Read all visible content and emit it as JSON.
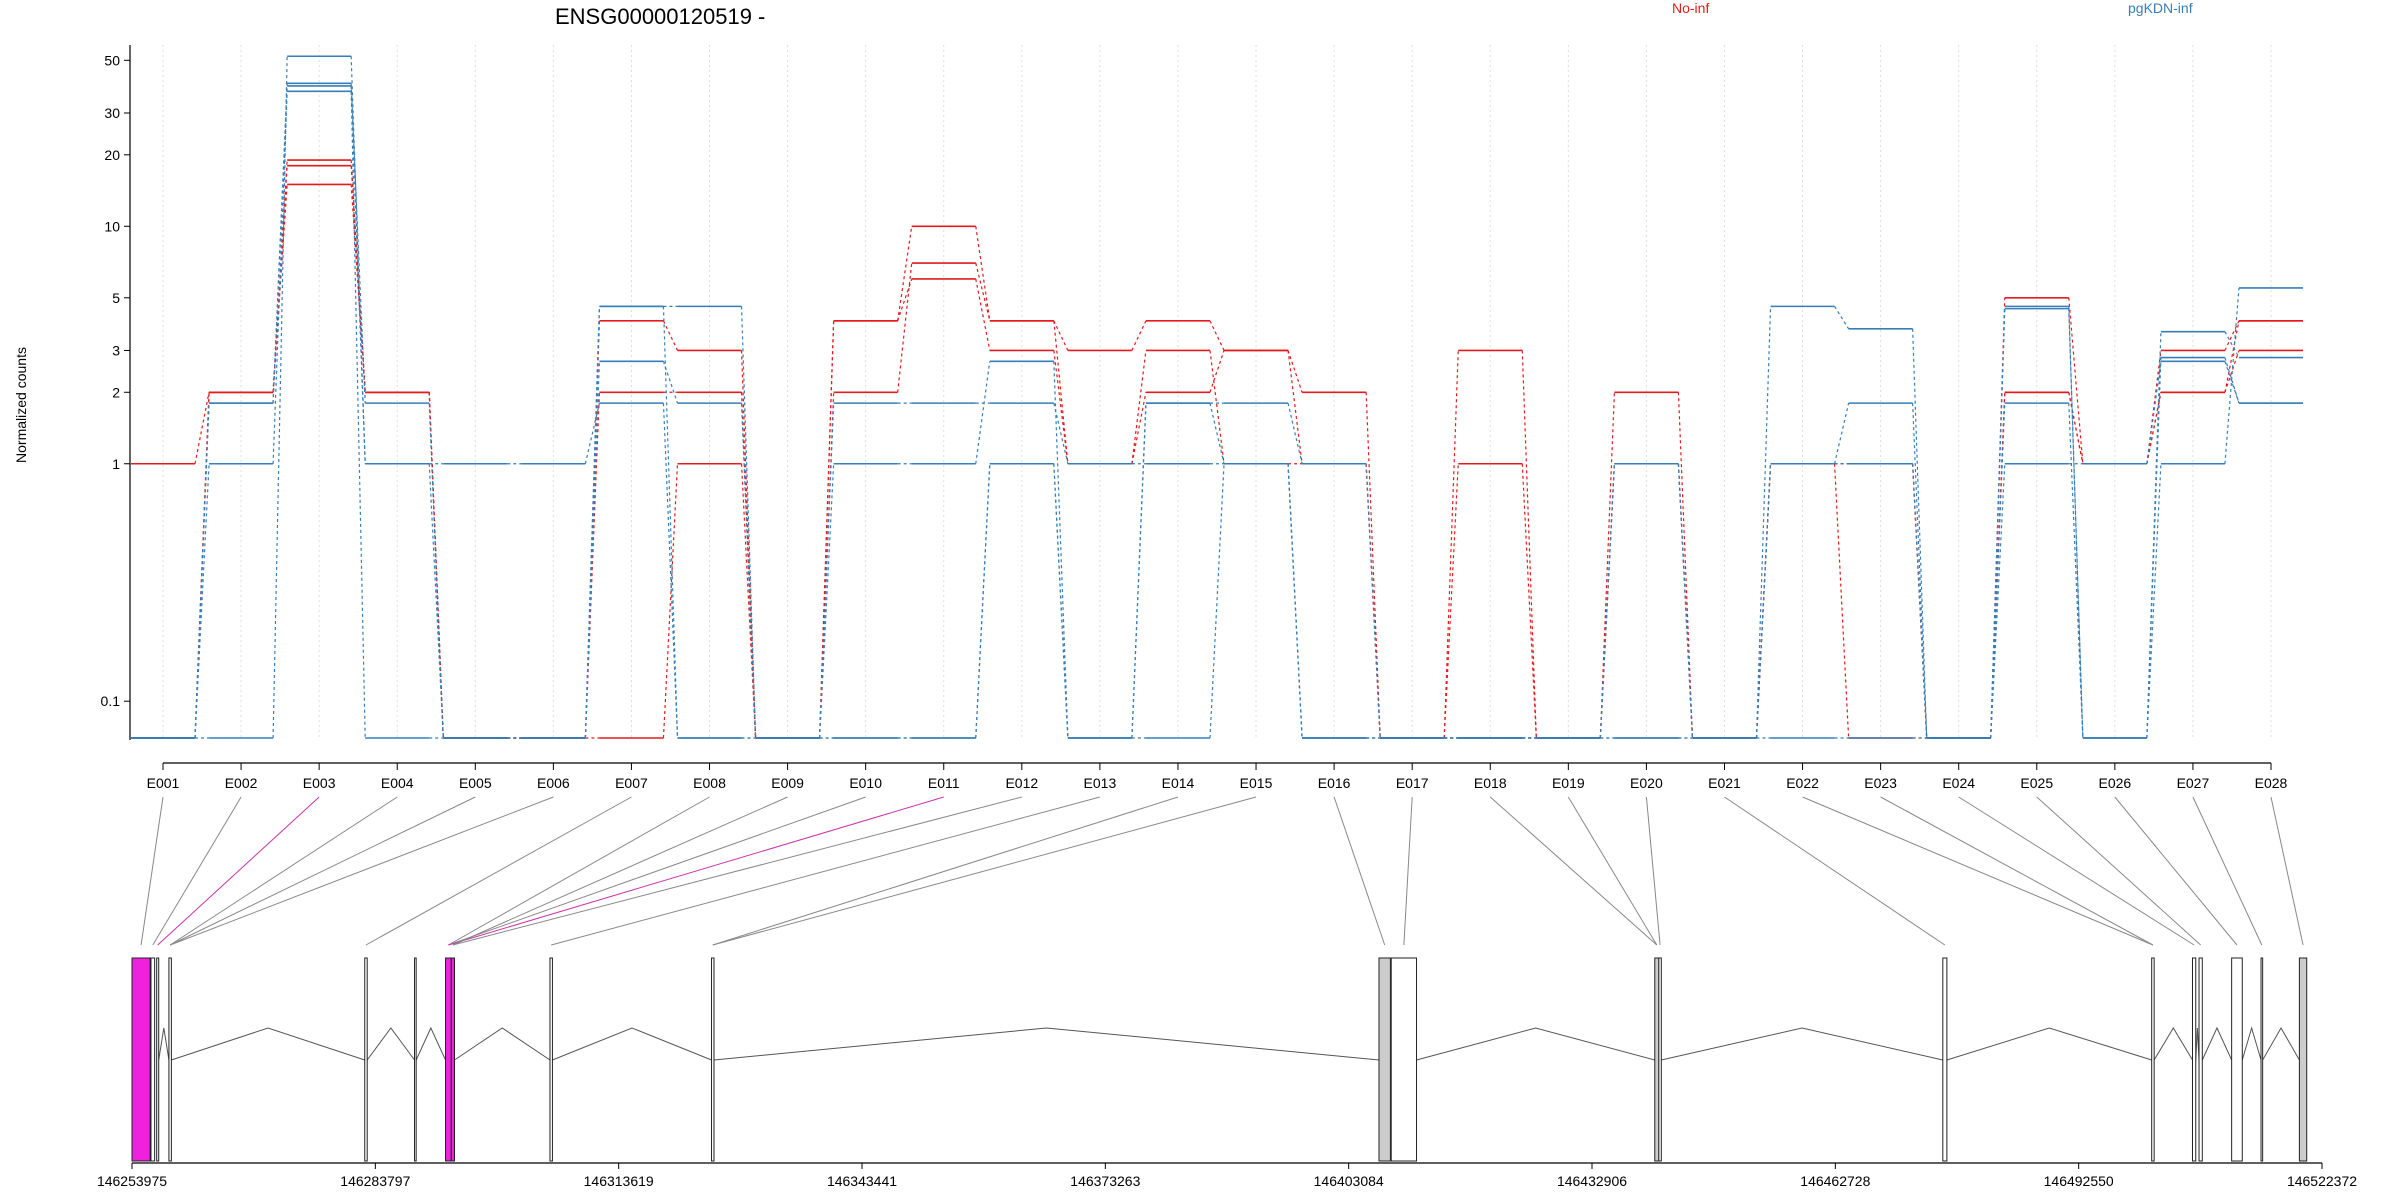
{
  "chart_data": {
    "type": "line",
    "title": "ENSG00000120519 -",
    "ylabel": "Normalized counts",
    "y_scale": "log",
    "y_floor_value": 0.07,
    "ylim": [
      0.07,
      58
    ],
    "yticks": [
      0.1,
      1,
      2,
      3,
      5,
      10,
      20,
      30,
      50
    ],
    "ytick_labels": [
      "0.1",
      "1",
      "2",
      "3",
      "5",
      "10",
      "20",
      "30",
      "50"
    ],
    "grid": "vertical dotted at exons",
    "legend_placement": "top",
    "colors": {
      "no_inf": "#e41a1c",
      "pgkdn_inf": "#377eb8",
      "highlight": "#ee22dd",
      "exon_fill": "#ffffff",
      "exon_gray": "#cccccc"
    },
    "categories": [
      "E001",
      "E002",
      "E003",
      "E004",
      "E005",
      "E006",
      "E007",
      "E008",
      "E009",
      "E010",
      "E011",
      "E012",
      "E013",
      "E014",
      "E015",
      "E016",
      "E017",
      "E018",
      "E019",
      "E020",
      "E021",
      "E022",
      "E023",
      "E024",
      "E025",
      "E026",
      "E027",
      "E028"
    ],
    "legend": [
      {
        "name": "No-inf",
        "color": "#e41a1c"
      },
      {
        "name": "pgKDN-inf",
        "color": "#377eb8"
      }
    ],
    "series": [
      {
        "group": "No-inf",
        "color": "#e41a1c",
        "values": [
          1,
          2,
          19,
          2,
          0.07,
          0.07,
          0.07,
          1,
          0.07,
          4,
          10,
          4,
          3,
          4,
          3,
          2,
          0.07,
          3,
          0.07,
          2,
          0.07,
          1,
          1,
          0.07,
          5,
          1,
          2,
          4
        ]
      },
      {
        "group": "No-inf",
        "color": "#e41a1c",
        "values": [
          0.07,
          2,
          18,
          2,
          0.07,
          0.07,
          2,
          2,
          0.07,
          2,
          7,
          4,
          1,
          2,
          3,
          1,
          0.07,
          1,
          0.07,
          1,
          0.07,
          1,
          0.07,
          0.07,
          2,
          1,
          3,
          4
        ]
      },
      {
        "group": "No-inf",
        "color": "#e41a1c",
        "values": [
          0.07,
          2,
          15,
          2,
          0.07,
          0.07,
          4,
          3,
          0.07,
          4,
          6,
          3,
          1,
          3,
          1,
          1,
          0.07,
          0.07,
          0.07,
          1,
          0.07,
          1,
          1,
          0.07,
          2,
          1,
          2,
          3
        ]
      },
      {
        "group": "pgKDN-inf",
        "color": "#377eb8",
        "values": [
          0.07,
          0.07,
          52,
          1,
          0.07,
          0.07,
          4.6,
          4.6,
          0.07,
          0.07,
          0.07,
          1,
          0.07,
          0.07,
          1,
          0.07,
          0.07,
          0.07,
          0.07,
          0.07,
          0.07,
          4.6,
          3.7,
          0.07,
          4.5,
          0.07,
          1,
          5.5
        ]
      },
      {
        "group": "pgKDN-inf",
        "color": "#377eb8",
        "values": [
          0.07,
          1.8,
          39,
          0.07,
          0.07,
          0.07,
          2.7,
          1.8,
          0.07,
          1,
          1,
          2.7,
          0.07,
          1.8,
          1.8,
          1,
          0.07,
          0.07,
          0.07,
          1,
          0.07,
          1,
          1,
          0.07,
          1.8,
          0.07,
          3.6,
          2.8
        ]
      },
      {
        "group": "pgKDN-inf",
        "color": "#377eb8",
        "values": [
          0.07,
          1,
          37,
          1,
          1,
          1,
          1.8,
          0.07,
          0.07,
          1.8,
          1.8,
          1.8,
          1,
          1,
          1,
          0.07,
          0.07,
          0.07,
          0.07,
          1,
          0.07,
          1,
          1.8,
          0.07,
          1,
          1,
          2.7,
          1.8
        ]
      },
      {
        "group": "pgKDN-inf",
        "color": "#377eb8",
        "values": [
          0.07,
          1.8,
          40,
          1.8,
          0.07,
          0.07,
          4.6,
          0.07,
          0.07,
          0.07,
          0.07,
          1,
          0.07,
          1.8,
          1,
          0.07,
          0.07,
          0.07,
          0.07,
          0.07,
          0.07,
          0.07,
          0.07,
          0.07,
          4.6,
          0.07,
          2.8,
          1.8
        ]
      }
    ],
    "genomic_axis": {
      "start": 146253975,
      "end": 146522372,
      "tick_labels": [
        "146253975",
        "146283797",
        "146313619",
        "146343441",
        "146373263",
        "146403084",
        "146432906",
        "146462728",
        "146492550",
        "146522372"
      ]
    },
    "exon_markers": [
      {
        "start": 146253975,
        "end": 146256200,
        "color": "highlight",
        "connects": [
          0
        ]
      },
      {
        "start": 146256300,
        "end": 146256750,
        "color": "none",
        "connects": [
          1
        ]
      },
      {
        "start": 146257000,
        "end": 146257250,
        "color": "none",
        "connects": [
          2
        ]
      },
      {
        "start": 146258500,
        "end": 146258800,
        "color": "none",
        "connects": [
          3,
          4,
          5
        ]
      },
      {
        "start": 146282500,
        "end": 146282800,
        "color": "none",
        "connects": [
          6
        ]
      },
      {
        "start": 146288600,
        "end": 146288800,
        "color": "none",
        "connects": []
      },
      {
        "start": 146292400,
        "end": 146293100,
        "color": "highlight",
        "connects": [
          7,
          9,
          10
        ]
      },
      {
        "start": 146293100,
        "end": 146293500,
        "color": "highlight",
        "connects": [
          8,
          11
        ]
      },
      {
        "start": 146305200,
        "end": 146305500,
        "color": "none",
        "connects": [
          12
        ]
      },
      {
        "start": 146325000,
        "end": 146325300,
        "color": "none",
        "connects": [
          13,
          14
        ]
      },
      {
        "start": 146406800,
        "end": 146408200,
        "color": "gray",
        "connects": [
          15
        ]
      },
      {
        "start": 146408300,
        "end": 146411400,
        "color": "none",
        "connects": [
          16
        ]
      },
      {
        "start": 146440600,
        "end": 146441100,
        "color": "gray",
        "connects": [
          17,
          18
        ]
      },
      {
        "start": 146441100,
        "end": 146441400,
        "color": "none",
        "connects": [
          19
        ]
      },
      {
        "start": 146475900,
        "end": 146476400,
        "color": "none",
        "connects": [
          20
        ]
      },
      {
        "start": 146501500,
        "end": 146501800,
        "color": "none",
        "connects": [
          21,
          22
        ]
      },
      {
        "start": 146506500,
        "end": 146506900,
        "color": "none",
        "connects": [
          23
        ]
      },
      {
        "start": 146507300,
        "end": 146507700,
        "color": "none",
        "connects": [
          24
        ]
      },
      {
        "start": 146511300,
        "end": 146512600,
        "color": "none",
        "connects": [
          25
        ]
      },
      {
        "start": 146514900,
        "end": 146515100,
        "color": "none",
        "connects": [
          26
        ]
      },
      {
        "start": 146519600,
        "end": 146520500,
        "color": "gray",
        "connects": [
          27
        ]
      }
    ],
    "highlighted_connectors": [
      2,
      10
    ]
  }
}
